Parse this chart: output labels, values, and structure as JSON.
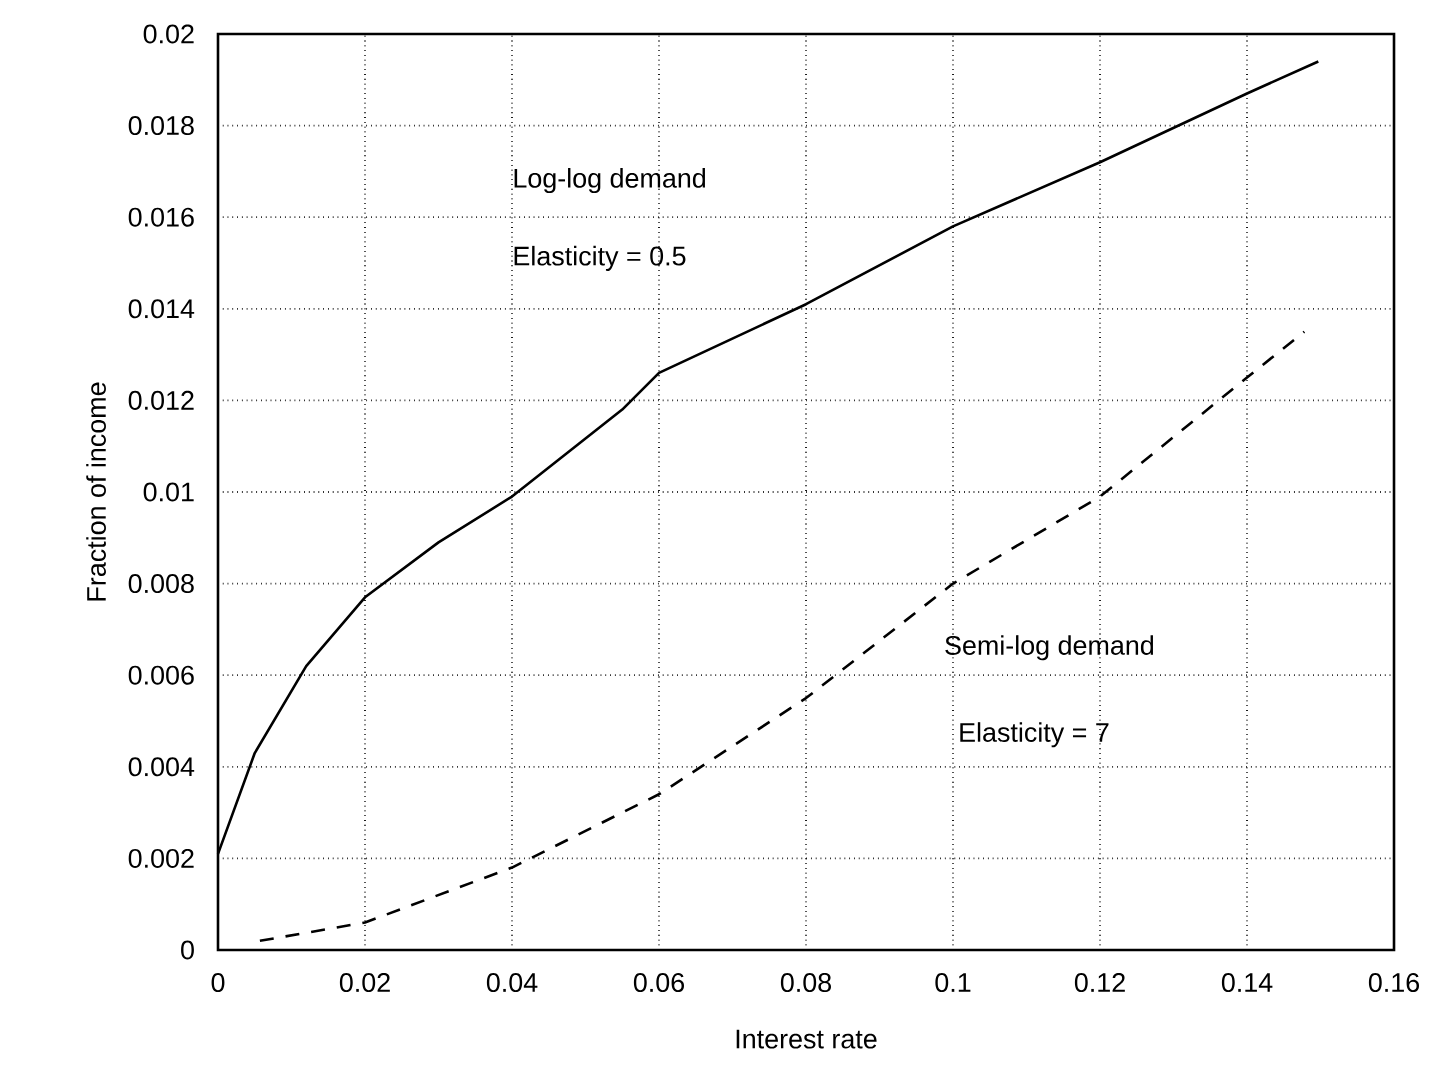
{
  "chart_data": {
    "type": "line",
    "xlabel": "Interest rate",
    "ylabel": "Fraction of income",
    "xlim": [
      0,
      0.16
    ],
    "ylim": [
      0,
      0.02
    ],
    "xticks": [
      0,
      0.02,
      0.04,
      0.06,
      0.08,
      0.1,
      0.12,
      0.14,
      0.16
    ],
    "yticks": [
      0,
      0.002,
      0.004,
      0.006,
      0.008,
      0.01,
      0.012,
      0.014,
      0.016,
      0.018,
      0.02
    ],
    "grid": true,
    "marker": "none",
    "series": [
      {
        "color": "#000000",
        "line_style": "solid",
        "x": [
          0,
          0.005,
          0.012,
          0.02,
          0.03,
          0.04,
          0.055,
          0.06,
          0.08,
          0.1,
          0.12,
          0.14,
          0.1497
        ],
        "values": [
          0.0021,
          0.0043,
          0.0062,
          0.0077,
          0.0089,
          0.0099,
          0.0118,
          0.0126,
          0.0141,
          0.0158,
          0.0172,
          0.0187,
          0.0194
        ]
      },
      {
        "color": "#000000",
        "line_style": "dashed",
        "x": [
          0.0057,
          0.02,
          0.04,
          0.06,
          0.08,
          0.1,
          0.12,
          0.14,
          0.1478
        ],
        "values": [
          0.0002,
          0.0006,
          0.0018,
          0.0034,
          0.0055,
          0.008,
          0.0099,
          0.0125,
          0.0135
        ]
      }
    ],
    "annotations": [
      "Log-log demand",
      "Elasticity = 0.5",
      "Semi-log demand",
      "Elasticity = 7"
    ]
  }
}
